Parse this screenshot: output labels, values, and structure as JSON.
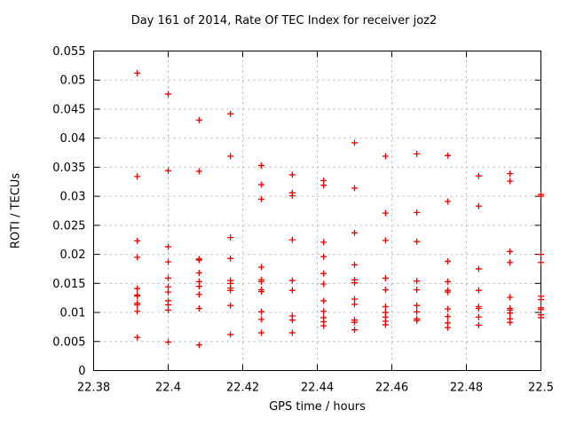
{
  "figure": {
    "title": "Day 161 of 2014, Rate Of TEC Index for receiver joz2",
    "xlabel": "GPS time / hours",
    "ylabel": "ROTI / TECUs"
  },
  "chart_data": {
    "type": "scatter",
    "title": "Day 161 of 2014, Rate Of TEC Index for receiver joz2",
    "xlabel": "GPS time / hours",
    "ylabel": "ROTI / TECUs",
    "xlim": [
      22.38,
      22.5
    ],
    "ylim": [
      0,
      0.055
    ],
    "xticks": [
      22.38,
      22.4,
      22.42,
      22.44,
      22.46,
      22.48,
      22.5
    ],
    "xtick_labels": [
      "22.38",
      "22.4",
      "22.42",
      "22.44",
      "22.46",
      "22.48",
      "22.5"
    ],
    "yticks": [
      0,
      0.005,
      0.01,
      0.015,
      0.02,
      0.025,
      0.03,
      0.035,
      0.04,
      0.045,
      0.05,
      0.055
    ],
    "ytick_labels": [
      "0",
      "0.005",
      "0.01",
      "0.015",
      "0.02",
      "0.025",
      "0.03",
      "0.035",
      "0.04",
      "0.045",
      "0.05",
      "0.055"
    ],
    "grid": true,
    "legend": "none",
    "marker": "plus",
    "colors": {
      "marker": "#ee0000",
      "grid": "#b0b0b0",
      "axis": "#000000",
      "background": "#ffffff"
    },
    "series": [
      {
        "name": "ROTI",
        "points": [
          [
            22.3917,
            0.0512
          ],
          [
            22.3917,
            0.0334
          ],
          [
            22.3917,
            0.0223
          ],
          [
            22.3917,
            0.0195
          ],
          [
            22.3917,
            0.0141
          ],
          [
            22.3917,
            0.013
          ],
          [
            22.3917,
            0.0128
          ],
          [
            22.3917,
            0.0116
          ],
          [
            22.3917,
            0.0113
          ],
          [
            22.3917,
            0.0102
          ],
          [
            22.3917,
            0.0057
          ],
          [
            22.4,
            0.0476
          ],
          [
            22.4,
            0.0344
          ],
          [
            22.4,
            0.0213
          ],
          [
            22.4,
            0.0187
          ],
          [
            22.4,
            0.0159
          ],
          [
            22.4,
            0.0144
          ],
          [
            22.4,
            0.0135
          ],
          [
            22.4,
            0.012
          ],
          [
            22.4,
            0.0113
          ],
          [
            22.4,
            0.0104
          ],
          [
            22.4,
            0.0049
          ],
          [
            22.4083,
            0.0431
          ],
          [
            22.4083,
            0.0343
          ],
          [
            22.4083,
            0.0192
          ],
          [
            22.4083,
            0.019
          ],
          [
            22.4083,
            0.0168
          ],
          [
            22.4083,
            0.0153
          ],
          [
            22.4083,
            0.0145
          ],
          [
            22.4083,
            0.0131
          ],
          [
            22.4083,
            0.0107
          ],
          [
            22.4083,
            0.0044
          ],
          [
            22.4167,
            0.0442
          ],
          [
            22.4167,
            0.0369
          ],
          [
            22.4167,
            0.0229
          ],
          [
            22.4167,
            0.0193
          ],
          [
            22.4167,
            0.0155
          ],
          [
            22.4167,
            0.015
          ],
          [
            22.4167,
            0.0142
          ],
          [
            22.4167,
            0.0138
          ],
          [
            22.4167,
            0.0112
          ],
          [
            22.4167,
            0.0062
          ],
          [
            22.425,
            0.0353
          ],
          [
            22.425,
            0.032
          ],
          [
            22.425,
            0.0295
          ],
          [
            22.425,
            0.0178
          ],
          [
            22.425,
            0.0156
          ],
          [
            22.425,
            0.0153
          ],
          [
            22.425,
            0.0139
          ],
          [
            22.425,
            0.0136
          ],
          [
            22.425,
            0.0101
          ],
          [
            22.425,
            0.0088
          ],
          [
            22.425,
            0.0065
          ],
          [
            22.4333,
            0.0337
          ],
          [
            22.4333,
            0.0306
          ],
          [
            22.4333,
            0.0301
          ],
          [
            22.4333,
            0.0225
          ],
          [
            22.4333,
            0.0155
          ],
          [
            22.4333,
            0.0138
          ],
          [
            22.4333,
            0.0094
          ],
          [
            22.4333,
            0.0087
          ],
          [
            22.4333,
            0.0065
          ],
          [
            22.4417,
            0.0327
          ],
          [
            22.4417,
            0.0319
          ],
          [
            22.4417,
            0.0221
          ],
          [
            22.4417,
            0.0196
          ],
          [
            22.4417,
            0.0167
          ],
          [
            22.4417,
            0.0149
          ],
          [
            22.4417,
            0.012
          ],
          [
            22.4417,
            0.0102
          ],
          [
            22.4417,
            0.0091
          ],
          [
            22.4417,
            0.0084
          ],
          [
            22.4417,
            0.0077
          ],
          [
            22.45,
            0.0392
          ],
          [
            22.45,
            0.0314
          ],
          [
            22.45,
            0.0237
          ],
          [
            22.45,
            0.0182
          ],
          [
            22.45,
            0.0156
          ],
          [
            22.45,
            0.0151
          ],
          [
            22.45,
            0.0123
          ],
          [
            22.45,
            0.0114
          ],
          [
            22.45,
            0.0087
          ],
          [
            22.45,
            0.0083
          ],
          [
            22.45,
            0.007
          ],
          [
            22.4583,
            0.0369
          ],
          [
            22.4583,
            0.0271
          ],
          [
            22.4583,
            0.0224
          ],
          [
            22.4583,
            0.0159
          ],
          [
            22.4583,
            0.0139
          ],
          [
            22.4583,
            0.011
          ],
          [
            22.4583,
            0.01
          ],
          [
            22.4583,
            0.0092
          ],
          [
            22.4583,
            0.0085
          ],
          [
            22.4583,
            0.0079
          ],
          [
            22.4667,
            0.0373
          ],
          [
            22.4667,
            0.0272
          ],
          [
            22.4667,
            0.0222
          ],
          [
            22.4667,
            0.0154
          ],
          [
            22.4667,
            0.0139
          ],
          [
            22.4667,
            0.0112
          ],
          [
            22.4667,
            0.0101
          ],
          [
            22.4667,
            0.0089
          ],
          [
            22.4667,
            0.0086
          ],
          [
            22.475,
            0.037
          ],
          [
            22.475,
            0.0291
          ],
          [
            22.475,
            0.0188
          ],
          [
            22.475,
            0.0153
          ],
          [
            22.475,
            0.0138
          ],
          [
            22.475,
            0.0135
          ],
          [
            22.475,
            0.0106
          ],
          [
            22.475,
            0.0093
          ],
          [
            22.475,
            0.0082
          ],
          [
            22.475,
            0.0074
          ],
          [
            22.4833,
            0.0335
          ],
          [
            22.4833,
            0.0283
          ],
          [
            22.4833,
            0.0175
          ],
          [
            22.4833,
            0.0138
          ],
          [
            22.4833,
            0.011
          ],
          [
            22.4833,
            0.0107
          ],
          [
            22.4833,
            0.0092
          ],
          [
            22.4833,
            0.0078
          ],
          [
            22.4917,
            0.0339
          ],
          [
            22.4917,
            0.0326
          ],
          [
            22.4917,
            0.0205
          ],
          [
            22.4917,
            0.0186
          ],
          [
            22.4917,
            0.0126
          ],
          [
            22.4917,
            0.0107
          ],
          [
            22.4917,
            0.0104
          ],
          [
            22.4917,
            0.0099
          ],
          [
            22.4917,
            0.0089
          ],
          [
            22.4917,
            0.0083
          ],
          [
            22.5,
            0.0303
          ],
          [
            22.5,
            0.03
          ],
          [
            22.5,
            0.02
          ],
          [
            22.5,
            0.0186
          ],
          [
            22.5,
            0.0128
          ],
          [
            22.5,
            0.0122
          ],
          [
            22.5,
            0.0108
          ],
          [
            22.5,
            0.0105
          ],
          [
            22.5,
            0.0096
          ],
          [
            22.5,
            0.0091
          ]
        ]
      }
    ]
  }
}
